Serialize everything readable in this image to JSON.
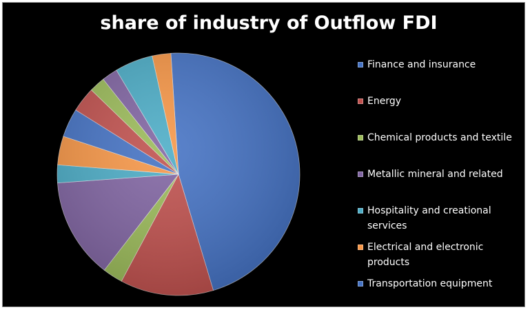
{
  "chart_data": {
    "type": "pie",
    "title": "share of industry of Outflow FDI",
    "legend_position": "right",
    "start_angle_deg": -3.6,
    "direction": "clockwise",
    "slices": [
      {
        "label": "Finance and insurance",
        "value": 48.5,
        "color": "#4472c4"
      },
      {
        "label": "Energy",
        "value": 13.0,
        "color": "#c0504d"
      },
      {
        "label": "Chemical products and textile",
        "value": 2.8,
        "color": "#9bbb59"
      },
      {
        "label": "Metallic mineral and related",
        "value": 14.0,
        "color": "#8064a2"
      },
      {
        "label": "Hospitality and creational services",
        "value": 2.5,
        "color": "#4bacc6"
      },
      {
        "label": "Electrical and electronic products",
        "value": 4.0,
        "color": "#f79646"
      },
      {
        "label": "Transportation equipment",
        "value": 4.0,
        "color": "#4472c4"
      },
      {
        "label": "",
        "value": 3.5,
        "color": "#c0504d"
      },
      {
        "label": "",
        "value": 2.2,
        "color": "#9bbb59"
      },
      {
        "label": "",
        "value": 2.2,
        "color": "#8064a2"
      },
      {
        "label": "",
        "value": 5.3,
        "color": "#4bacc6"
      },
      {
        "label": "",
        "value": 2.6,
        "color": "#f79646"
      }
    ],
    "legend": [
      {
        "label": "Finance and insurance",
        "color": "#4472c4"
      },
      {
        "label": "Energy",
        "color": "#c0504d"
      },
      {
        "label": "Chemical products and textile",
        "color": "#9bbb59"
      },
      {
        "label": "Metallic mineral and related",
        "color": "#8064a2"
      },
      {
        "label": "Hospitality and creational services",
        "color": "#4bacc6"
      },
      {
        "label": "Electrical and electronic products",
        "color": "#f79646"
      },
      {
        "label": "Transportation equipment",
        "color": "#4472c4"
      }
    ]
  }
}
